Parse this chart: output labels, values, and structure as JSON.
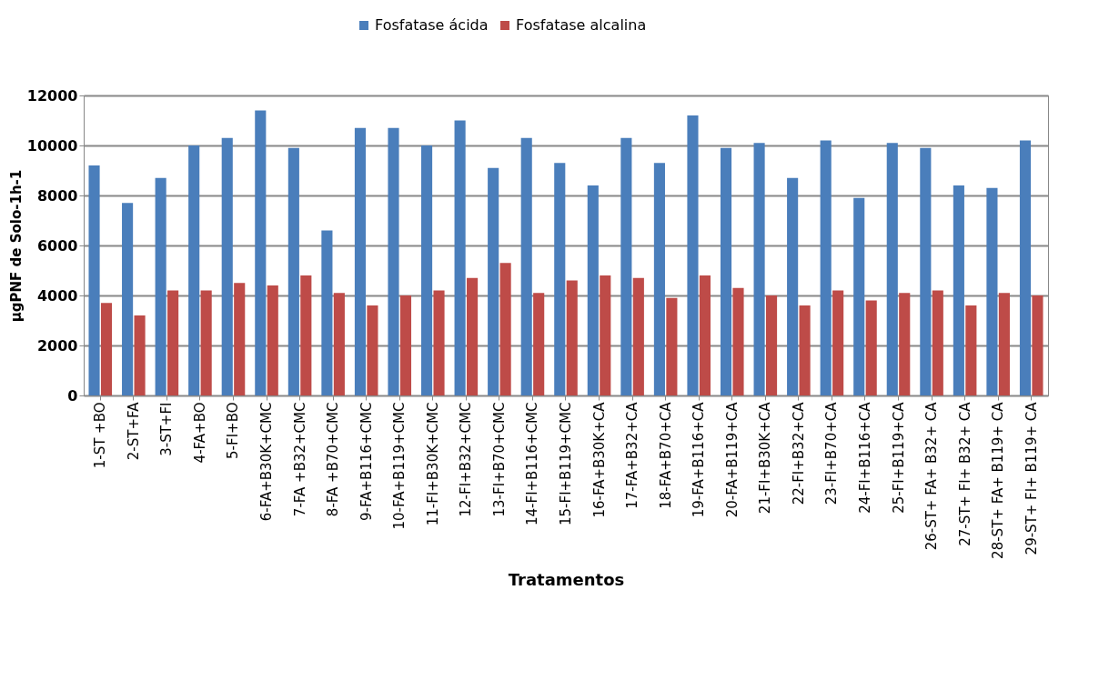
{
  "chart_data": {
    "type": "bar",
    "xlabel": "Tratamentos",
    "ylabel": "µgPNF de Solo-1h-1",
    "categories": [
      "1-ST +BO",
      "2-ST+FA",
      "3-ST+FI",
      "4-FA+BO",
      "5-FI+BO",
      "6-FA+B30K+CMC",
      "7-FA +B32+CMC",
      "8-FA +B70+CMC",
      "9-FA+B116+CMC",
      "10-FA+B119+CMC",
      "11-FI+B30K+CMC",
      "12-FI+B32+CMC",
      "13-FI+B70+CMC",
      "14-FI+B116+CMC",
      "15-FI+B119+CMC",
      "16-FA+B30K+CA",
      "17-FA+B32+CA",
      "18-FA+B70+CA",
      "19-FA+B116+CA",
      "20-FA+B119+CA",
      "21-FI+B30K+CA",
      "22-FI+B32+CA",
      "23-FI+B70+CA",
      "24-FI+B116+CA",
      "25-FI+B119+CA",
      "26-ST+ FA+ B32+ CA",
      "27-ST+ FI+ B32+ CA",
      "28-ST+ FA+ B119+ CA",
      "29-ST+ FI+ B119+ CA"
    ],
    "series": [
      {
        "name": "Fosfatase ácida",
        "color": "#4a7ebb",
        "values": [
          9200,
          7700,
          8700,
          10000,
          10300,
          11400,
          9900,
          6600,
          10700,
          10700,
          10000,
          11000,
          9100,
          10300,
          9300,
          8400,
          10300,
          9300,
          11200,
          9900,
          10100,
          8700,
          10200,
          7900,
          10100,
          9900,
          8400,
          8300,
          10200
        ]
      },
      {
        "name": "Fosfatase alcalina",
        "color": "#be4b48",
        "values": [
          3700,
          3200,
          4200,
          4200,
          4500,
          4400,
          4800,
          4100,
          3600,
          4000,
          4200,
          4700,
          5300,
          4100,
          4600,
          4800,
          4700,
          3900,
          4800,
          4300,
          4000,
          3600,
          4200,
          3800,
          4100,
          4200,
          3600,
          4100,
          4000
        ]
      }
    ],
    "ylim": [
      0,
      12000
    ],
    "yticks": [
      0,
      2000,
      4000,
      6000,
      8000,
      10000,
      12000
    ],
    "grid": "y",
    "legend": "top"
  }
}
